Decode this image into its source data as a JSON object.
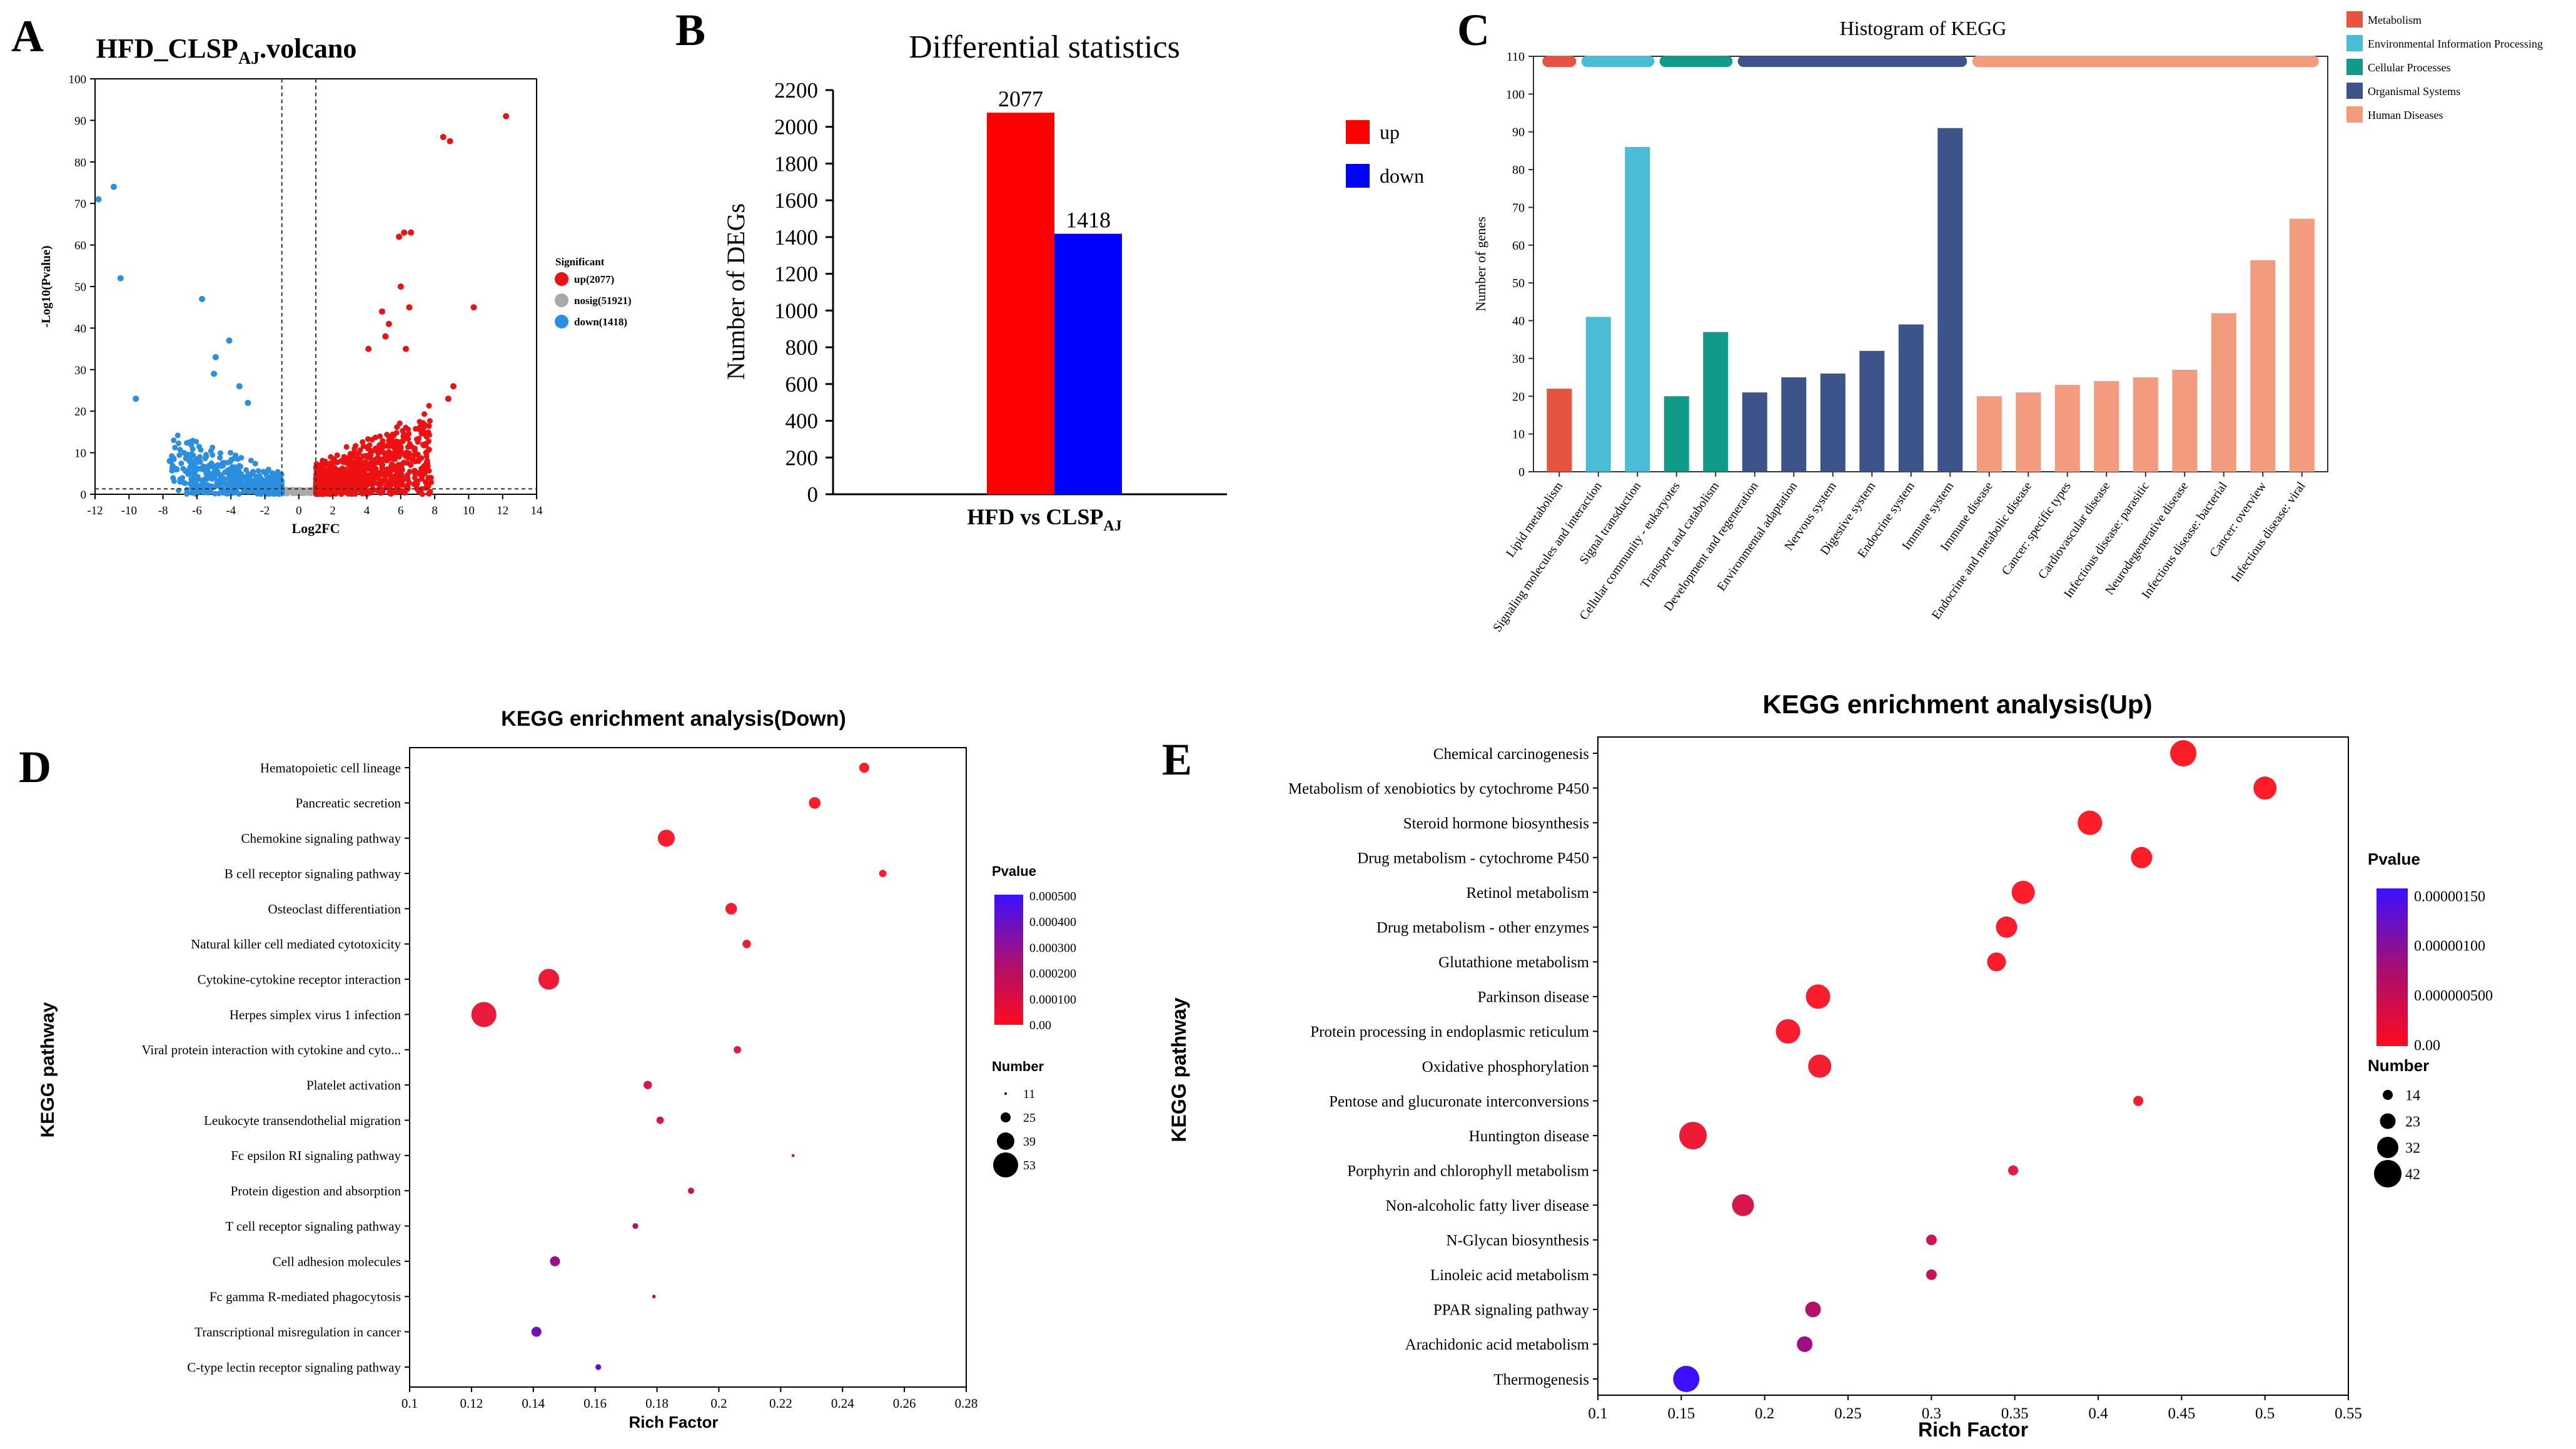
{
  "chart_data": [
    {
      "panel": "A",
      "type": "scatter",
      "title_main": "HFD_CLSP",
      "title_sub": "AJ",
      "title_tail": ".volcano",
      "xlabel": "Log2FC",
      "ylabel": "-Log10(Pvalue)",
      "xlim": [
        -12,
        14
      ],
      "ylim": [
        0,
        100
      ],
      "xticks": [
        -12,
        -10,
        -8,
        -6,
        -4,
        -2,
        0,
        2,
        4,
        6,
        8,
        10,
        12,
        14
      ],
      "yticks": [
        0,
        10,
        20,
        30,
        40,
        50,
        60,
        70,
        80,
        90,
        100
      ],
      "thresholds": {
        "log2fc": [
          -1,
          1
        ],
        "neg_log10_p": 1.3
      },
      "legend_title": "Significant",
      "legend": [
        {
          "label": "up(2077)",
          "color": "#ee1111"
        },
        {
          "label": "nosig(51921)",
          "color": "#a9a9a9"
        },
        {
          "label": "down(1418)",
          "color": "#2b8fe0"
        }
      ],
      "highlight_points_up": [
        [
          12.2,
          91
        ],
        [
          8.5,
          86
        ],
        [
          8.9,
          85
        ],
        [
          10.3,
          45
        ],
        [
          9.1,
          26
        ],
        [
          8.8,
          23
        ],
        [
          6.6,
          63
        ],
        [
          6.2,
          63
        ],
        [
          5.9,
          62
        ],
        [
          6.0,
          50
        ],
        [
          5.3,
          41
        ],
        [
          5.1,
          38
        ],
        [
          6.3,
          35
        ],
        [
          6.5,
          45
        ],
        [
          4.1,
          35
        ],
        [
          4.9,
          44
        ],
        [
          7.5,
          10
        ]
      ],
      "highlight_points_down": [
        [
          -11.8,
          71
        ],
        [
          -10.9,
          74
        ],
        [
          -10.5,
          52
        ],
        [
          -9.6,
          23
        ],
        [
          -5.7,
          47
        ],
        [
          -4.9,
          33
        ],
        [
          -4.1,
          37
        ],
        [
          -5.0,
          29
        ],
        [
          -7.6,
          8
        ],
        [
          -7.2,
          6
        ],
        [
          -3.5,
          26
        ],
        [
          -3.0,
          22
        ]
      ]
    },
    {
      "panel": "B",
      "type": "bar",
      "title": "Differential statistics",
      "ylabel": "Number of DEGs",
      "xlabel_main": "HFD vs CLSP",
      "xlabel_sub": "AJ",
      "ylim": [
        0,
        2200
      ],
      "yticks": [
        0,
        200,
        400,
        600,
        800,
        1000,
        1200,
        1400,
        1600,
        1800,
        2000,
        2200
      ],
      "series": [
        {
          "name": "up",
          "value": 2077,
          "color": "#ff0000",
          "label": "2077"
        },
        {
          "name": "down",
          "value": 1418,
          "color": "#0000ff",
          "label": "1418"
        }
      ]
    },
    {
      "panel": "C",
      "type": "bar",
      "title": "Histogram of KEGG",
      "ylabel": "Number of genes",
      "ylim": [
        0,
        110
      ],
      "yticks": [
        0,
        10,
        20,
        30,
        40,
        50,
        60,
        70,
        80,
        90,
        100,
        110
      ],
      "groups": [
        {
          "name": "Metabolism",
          "color": "#e65341",
          "start": 0,
          "end": 0
        },
        {
          "name": "Environmental Information Processing",
          "color": "#4bbcd6",
          "start": 1,
          "end": 2
        },
        {
          "name": "Cellular Processes",
          "color": "#109b89",
          "start": 3,
          "end": 4
        },
        {
          "name": "Organismal Systems",
          "color": "#3c5489",
          "start": 5,
          "end": 10
        },
        {
          "name": "Human Diseases",
          "color": "#f39b7f",
          "start": 11,
          "end": 19
        }
      ],
      "categories": [
        "Lipid metabolism",
        "Signaling molecules and interaction",
        "Signal transduction",
        "Cellular community - eukaryotes",
        "Transport and catabolism",
        "Development and regeneration",
        "Environmental adaptation",
        "Nervous system",
        "Digestive system",
        "Endocrine system",
        "Immune system",
        "Immune disease",
        "Endocrine and metabolic disease",
        "Cancer: specific types",
        "Cardiovascular disease",
        "Infectious disease: parasitic",
        "Neurodegenerative disease",
        "Infectious disease: bacterial",
        "Cancer: overview",
        "Infectious disease: viral"
      ],
      "values": [
        22,
        41,
        86,
        20,
        37,
        21,
        25,
        26,
        32,
        39,
        91,
        20,
        21,
        23,
        24,
        25,
        27,
        42,
        56,
        67
      ]
    },
    {
      "panel": "D",
      "type": "scatter",
      "title": "KEGG enrichment analysis(Down)",
      "xlabel": "Rich Factor",
      "ylabel": "KEGG pathway",
      "xlim": [
        0.1,
        0.28
      ],
      "xticks": [
        "0.1",
        "0.12",
        "0.14",
        "0.16",
        "0.18",
        "0.2",
        "0.22",
        "0.24",
        "0.26",
        "0.28"
      ],
      "color_legend_title": "Pvalue",
      "color_ticks": [
        "0.000500",
        "0.000400",
        "0.000300",
        "0.000200",
        "0.000100",
        "0.00"
      ],
      "size_legend_title": "Number",
      "size_legend": [
        "11",
        "25",
        "39",
        "53"
      ],
      "pathways": [
        {
          "name": "Hematopoietic cell lineage",
          "rich": 0.247,
          "number": 25,
          "pvalue": 1e-05
        },
        {
          "name": "Pancreatic secretion",
          "rich": 0.231,
          "number": 28,
          "pvalue": 1e-05
        },
        {
          "name": "Chemokine signaling pathway",
          "rich": 0.183,
          "number": 38,
          "pvalue": 2e-05
        },
        {
          "name": "B cell receptor signaling pathway",
          "rich": 0.253,
          "number": 20,
          "pvalue": 3e-05
        },
        {
          "name": "Osteoclast differentiation",
          "rich": 0.204,
          "number": 28,
          "pvalue": 4e-05
        },
        {
          "name": "Natural killer cell mediated cytotoxicity",
          "rich": 0.209,
          "number": 22,
          "pvalue": 5e-05
        },
        {
          "name": "Cytokine-cytokine receptor interaction",
          "rich": 0.145,
          "number": 45,
          "pvalue": 6e-05
        },
        {
          "name": "Herpes simplex virus 1 infection",
          "rich": 0.124,
          "number": 53,
          "pvalue": 7e-05
        },
        {
          "name": "Viral protein interaction with cytokine and cyto...",
          "rich": 0.206,
          "number": 20,
          "pvalue": 0.0001
        },
        {
          "name": "Platelet activation",
          "rich": 0.177,
          "number": 22,
          "pvalue": 0.00012
        },
        {
          "name": "Leukocyte transendothelial migration",
          "rich": 0.181,
          "number": 20,
          "pvalue": 0.00014
        },
        {
          "name": "Fc epsilon RI signaling pathway",
          "rich": 0.224,
          "number": 12,
          "pvalue": 0.00016
        },
        {
          "name": "Protein digestion and absorption",
          "rich": 0.191,
          "number": 18,
          "pvalue": 0.00018
        },
        {
          "name": "T cell receptor signaling pathway",
          "rich": 0.173,
          "number": 17,
          "pvalue": 0.00025
        },
        {
          "name": "Cell adhesion molecules",
          "rich": 0.147,
          "number": 25,
          "pvalue": 0.0003
        },
        {
          "name": "Fc gamma R-mediated phagocytosis",
          "rich": 0.179,
          "number": 13,
          "pvalue": 0.00028
        },
        {
          "name": "Transcriptional misregulation in cancer",
          "rich": 0.141,
          "number": 25,
          "pvalue": 0.00038
        },
        {
          "name": "C-type lectin receptor signaling pathway",
          "rich": 0.161,
          "number": 17,
          "pvalue": 0.00045
        }
      ]
    },
    {
      "panel": "E",
      "type": "scatter",
      "title": "KEGG enrichment analysis(Up)",
      "xlabel": "Rich Factor",
      "ylabel": "KEGG pathway",
      "xlim": [
        0.1,
        0.55
      ],
      "xticks": [
        "0.1",
        "0.15",
        "0.2",
        "0.25",
        "0.3",
        "0.35",
        "0.4",
        "0.45",
        "0.5",
        "0.55"
      ],
      "color_legend_title": "Pvalue",
      "color_ticks": [
        "0.00000150",
        "0.00000100",
        "0.000000500",
        "0.00"
      ],
      "size_legend_title": "Number",
      "size_legend": [
        "14",
        "23",
        "32",
        "42"
      ],
      "pathways": [
        {
          "name": "Chemical carcinogenesis",
          "rich": 0.451,
          "number": 40,
          "pvalue": 0.0
        },
        {
          "name": "Metabolism of xenobiotics by cytochrome P450",
          "rich": 0.5,
          "number": 35,
          "pvalue": 0.0
        },
        {
          "name": "Steroid hormone biosynthesis",
          "rich": 0.395,
          "number": 37,
          "pvalue": 0.0
        },
        {
          "name": "Drug metabolism - cytochrome P450",
          "rich": 0.426,
          "number": 32,
          "pvalue": 2e-08
        },
        {
          "name": "Retinol metabolism",
          "rich": 0.355,
          "number": 35,
          "pvalue": 3e-08
        },
        {
          "name": "Drug metabolism - other enzymes",
          "rich": 0.345,
          "number": 32,
          "pvalue": 4e-08
        },
        {
          "name": "Glutathione metabolism",
          "rich": 0.339,
          "number": 28,
          "pvalue": 5e-08
        },
        {
          "name": "Parkinson disease",
          "rich": 0.232,
          "number": 37,
          "pvalue": 6e-08
        },
        {
          "name": "Protein processing in endoplasmic reticulum",
          "rich": 0.214,
          "number": 37,
          "pvalue": 8e-08
        },
        {
          "name": "Oxidative phosphorylation",
          "rich": 0.233,
          "number": 35,
          "pvalue": 1e-07
        },
        {
          "name": "Pentose and glucuronate interconversions",
          "rich": 0.424,
          "number": 14,
          "pvalue": 1.2e-07
        },
        {
          "name": "Huntington disease",
          "rich": 0.157,
          "number": 42,
          "pvalue": 2e-07
        },
        {
          "name": "Porphyrin and chlorophyll metabolism",
          "rich": 0.349,
          "number": 14,
          "pvalue": 3e-07
        },
        {
          "name": "Non-alcoholic fatty liver disease",
          "rich": 0.187,
          "number": 33,
          "pvalue": 5e-07
        },
        {
          "name": "N-Glycan biosynthesis",
          "rich": 0.3,
          "number": 15,
          "pvalue": 6e-07
        },
        {
          "name": "Linoleic acid metabolism",
          "rich": 0.3,
          "number": 15,
          "pvalue": 7e-07
        },
        {
          "name": "PPAR signaling pathway",
          "rich": 0.229,
          "number": 23,
          "pvalue": 9e-07
        },
        {
          "name": "Arachidonic acid metabolism",
          "rich": 0.224,
          "number": 23,
          "pvalue": 1.1e-06
        },
        {
          "name": "Thermogenesis",
          "rich": 0.153,
          "number": 40,
          "pvalue": 1.9e-06
        }
      ]
    }
  ],
  "panel_labels": [
    "A",
    "B",
    "C",
    "D",
    "E"
  ]
}
